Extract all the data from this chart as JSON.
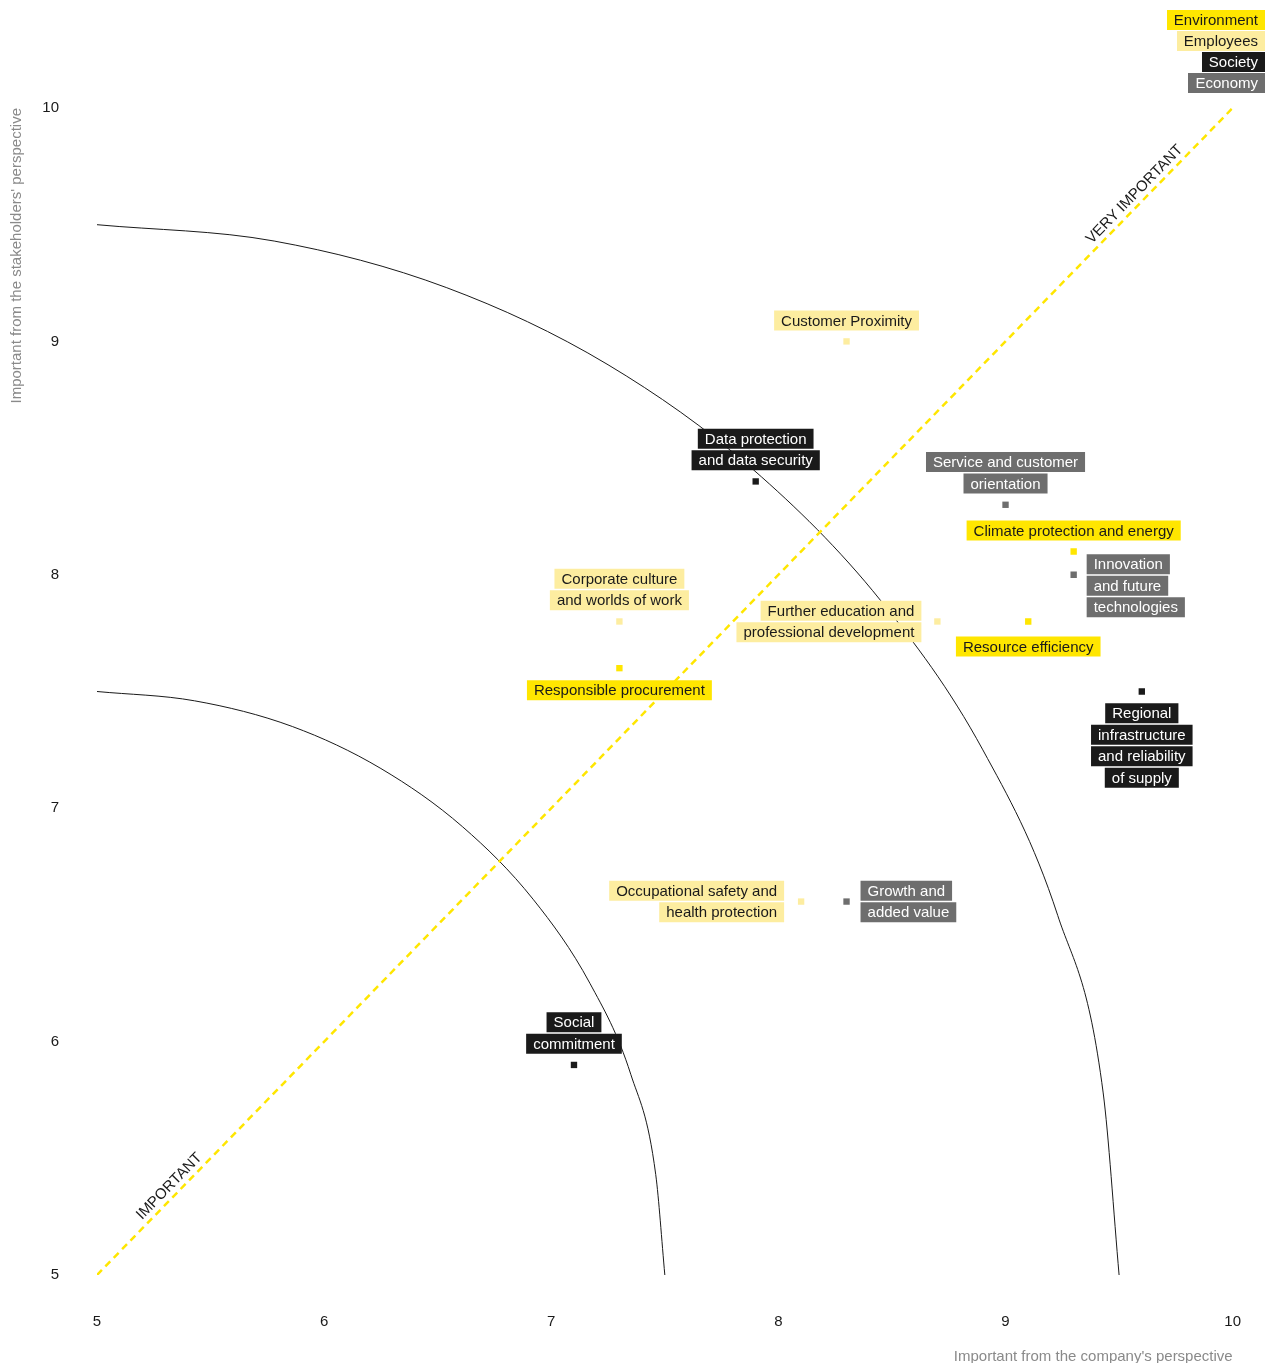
{
  "chart_data": {
    "type": "scatter",
    "xlabel": "Important from the company's perspective",
    "ylabel": "Important from the stakeholders' perspective",
    "xlim": [
      5,
      10
    ],
    "ylim": [
      5,
      10
    ],
    "xticks": [
      5,
      6,
      7,
      8,
      9,
      10
    ],
    "yticks": [
      5,
      6,
      7,
      8,
      9,
      10
    ],
    "grid": false,
    "legend": "top right",
    "marker": "square",
    "series": [
      {
        "name": "Environment",
        "color": "#ffe600",
        "x": [
          9.3,
          9.1,
          7.3
        ],
        "values": [
          8.1,
          7.8,
          7.6
        ]
      },
      {
        "name": "Employees",
        "color": "#fdeda0",
        "x": [
          8.3,
          8.7,
          7.3,
          8.1
        ],
        "values": [
          9.0,
          7.8,
          7.8,
          6.6
        ]
      },
      {
        "name": "Society",
        "color": "#1a1a1a",
        "x": [
          7.9,
          9.6,
          7.1
        ],
        "values": [
          8.4,
          7.5,
          5.9
        ]
      },
      {
        "name": "Economy",
        "color": "#6e6e6e",
        "x": [
          9.0,
          9.3,
          8.3
        ],
        "values": [
          8.3,
          8.0,
          6.6
        ]
      },
      {
        "type": "line",
        "color": "#ffe600",
        "line_style": "dashed",
        "marker": "none",
        "x": [
          5,
          10
        ],
        "values": [
          5,
          10
        ]
      },
      {
        "type": "line",
        "color": "#1a1a1a",
        "line_style": "solid",
        "marker": "none",
        "x": [
          5,
          5.78,
          6.54,
          7.25,
          7.89,
          8.45,
          8.9,
          9.23,
          9.43,
          9.5
        ],
        "values": [
          9.5,
          9.43,
          9.23,
          8.9,
          8.45,
          7.89,
          7.25,
          6.54,
          5.78,
          5
        ]
      },
      {
        "type": "line",
        "color": "#1a1a1a",
        "line_style": "solid",
        "marker": "none",
        "x": [
          5,
          5.43,
          5.86,
          6.25,
          6.61,
          6.92,
          7.17,
          7.35,
          7.46,
          7.5
        ],
        "values": [
          7.5,
          7.46,
          7.35,
          7.17,
          6.92,
          6.61,
          6.25,
          5.86,
          5.43,
          5
        ]
      }
    ],
    "annotations": [
      {
        "text": "Customer Proximity",
        "x": 8.3,
        "y": 9.0
      },
      {
        "text": "Data protection\nand data security",
        "x": 7.9,
        "y": 8.4
      },
      {
        "text": "Service and customer\norientation",
        "x": 9.0,
        "y": 8.3
      },
      {
        "text": "Climate protection and energy",
        "x": 9.3,
        "y": 8.1
      },
      {
        "text": "Innovation\nand future\ntechnologies",
        "x": 9.3,
        "y": 8.0
      },
      {
        "text": "Resource efficiency",
        "x": 9.1,
        "y": 7.8
      },
      {
        "text": "Further education and\nprofessional development",
        "x": 8.7,
        "y": 7.8
      },
      {
        "text": "Corporate culture\nand worlds of work",
        "x": 7.3,
        "y": 7.8
      },
      {
        "text": "Responsible procurement",
        "x": 7.3,
        "y": 7.6
      },
      {
        "text": "Regional\ninfrastructure\nand reliability\nof supply",
        "x": 9.6,
        "y": 7.5
      },
      {
        "text": "Occupational safety and\nhealth protection",
        "x": 8.1,
        "y": 6.6
      },
      {
        "text": "Growth and\nadded value",
        "x": 8.3,
        "y": 6.6
      },
      {
        "text": "Social\ncommitment",
        "x": 7.1,
        "y": 5.9
      },
      {
        "text": "IMPORTANT",
        "x": 5.35,
        "y": 5.35
      },
      {
        "text": "VERY IMPORTANT",
        "x": 9.6,
        "y": 9.6
      }
    ]
  }
}
